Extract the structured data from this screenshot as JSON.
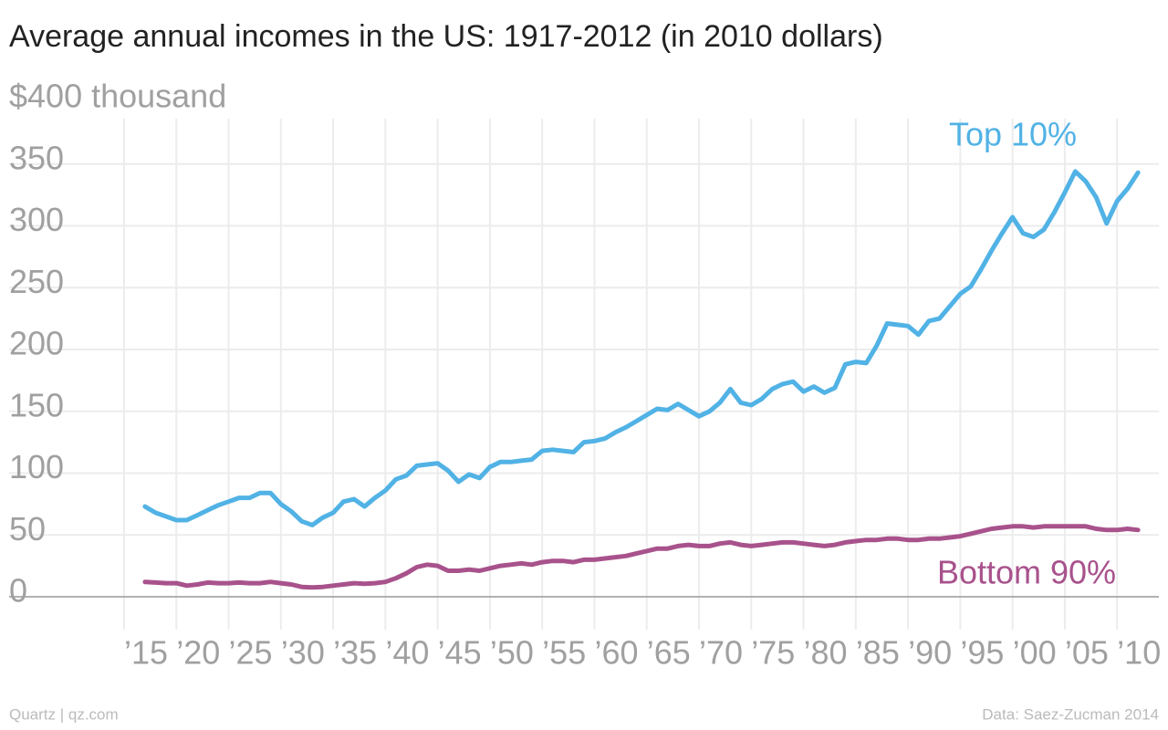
{
  "chart_data": {
    "type": "line",
    "title": "Average annual incomes in the US: 1917-2012 (in 2010 dollars)",
    "credit": "Quartz | qz.com",
    "source": "Data: Saez-Zucman 2014",
    "x": [
      1917,
      1918,
      1919,
      1920,
      1921,
      1922,
      1923,
      1924,
      1925,
      1926,
      1927,
      1928,
      1929,
      1930,
      1931,
      1932,
      1933,
      1934,
      1935,
      1936,
      1937,
      1938,
      1939,
      1940,
      1941,
      1942,
      1943,
      1944,
      1945,
      1946,
      1947,
      1948,
      1949,
      1950,
      1951,
      1952,
      1953,
      1954,
      1955,
      1956,
      1957,
      1958,
      1959,
      1960,
      1961,
      1962,
      1963,
      1964,
      1965,
      1966,
      1967,
      1968,
      1969,
      1970,
      1971,
      1972,
      1973,
      1974,
      1975,
      1976,
      1977,
      1978,
      1979,
      1980,
      1981,
      1982,
      1983,
      1984,
      1985,
      1986,
      1987,
      1988,
      1989,
      1990,
      1991,
      1992,
      1993,
      1994,
      1995,
      1996,
      1997,
      1998,
      1999,
      2000,
      2001,
      2002,
      2003,
      2004,
      2005,
      2006,
      2007,
      2008,
      2009,
      2010,
      2011,
      2012
    ],
    "series": [
      {
        "name": "Top 10%",
        "color": "#51b2e5",
        "values": [
          73,
          68,
          65,
          62,
          62,
          66,
          70,
          74,
          77,
          80,
          80,
          84,
          84,
          75,
          69,
          61,
          58,
          64,
          68,
          77,
          79,
          73,
          80,
          86,
          95,
          98,
          106,
          107,
          108,
          102,
          93,
          99,
          96,
          105,
          109,
          109,
          110,
          111,
          118,
          119,
          118,
          117,
          125,
          126,
          128,
          133,
          137,
          142,
          147,
          152,
          151,
          156,
          151,
          146,
          150,
          157,
          168,
          157,
          155,
          160,
          168,
          172,
          174,
          166,
          170,
          165,
          169,
          188,
          190,
          189,
          203,
          221,
          220,
          219,
          212,
          223,
          225,
          235,
          245,
          251,
          265,
          280,
          294,
          307,
          294,
          291,
          297,
          311,
          327,
          344,
          336,
          323,
          302,
          320,
          330,
          343
        ]
      },
      {
        "name": "Bottom 90%",
        "color": "#a8528c",
        "values": [
          12,
          11.5,
          11,
          11,
          9,
          10,
          11.5,
          11,
          11,
          11.5,
          11,
          11,
          12,
          11,
          10,
          8,
          7.5,
          8,
          9,
          10,
          11,
          10.5,
          11,
          12,
          15,
          19,
          24,
          26,
          25,
          21,
          21,
          22,
          21,
          23,
          25,
          26,
          27,
          26,
          28,
          29,
          29,
          28,
          30,
          30,
          31,
          32,
          33,
          35,
          37,
          39,
          39,
          41,
          42,
          41,
          41,
          43,
          44,
          42,
          41,
          42,
          43,
          44,
          44,
          43,
          42,
          41,
          42,
          44,
          45,
          46,
          46,
          47,
          47,
          46,
          46,
          47,
          47,
          48,
          49,
          51,
          53,
          55,
          56,
          57,
          57,
          56,
          57,
          57,
          57,
          57,
          57,
          55,
          54,
          54,
          55,
          54
        ]
      }
    ],
    "xlim": [
      1904,
      2014
    ],
    "xticks": [
      {
        "value": 1915,
        "label": "’15"
      },
      {
        "value": 1920,
        "label": "’20"
      },
      {
        "value": 1925,
        "label": "’25"
      },
      {
        "value": 1930,
        "label": "’30"
      },
      {
        "value": 1935,
        "label": "’35"
      },
      {
        "value": 1940,
        "label": "’40"
      },
      {
        "value": 1945,
        "label": "’45"
      },
      {
        "value": 1950,
        "label": "’50"
      },
      {
        "value": 1955,
        "label": "’55"
      },
      {
        "value": 1960,
        "label": "’60"
      },
      {
        "value": 1965,
        "label": "’65"
      },
      {
        "value": 1970,
        "label": "’70"
      },
      {
        "value": 1975,
        "label": "’75"
      },
      {
        "value": 1980,
        "label": "’80"
      },
      {
        "value": 1985,
        "label": "’85"
      },
      {
        "value": 1990,
        "label": "’90"
      },
      {
        "value": 1995,
        "label": "’95"
      },
      {
        "value": 2000,
        "label": "’00"
      },
      {
        "value": 2005,
        "label": "’05"
      },
      {
        "value": 2010,
        "label": "’10"
      }
    ],
    "ylim": [
      0,
      400
    ],
    "yticks": [
      0,
      50,
      100,
      150,
      200,
      250,
      300,
      350,
      {
        "value": 400,
        "label": "$400 thousand"
      }
    ],
    "grid": true
  }
}
